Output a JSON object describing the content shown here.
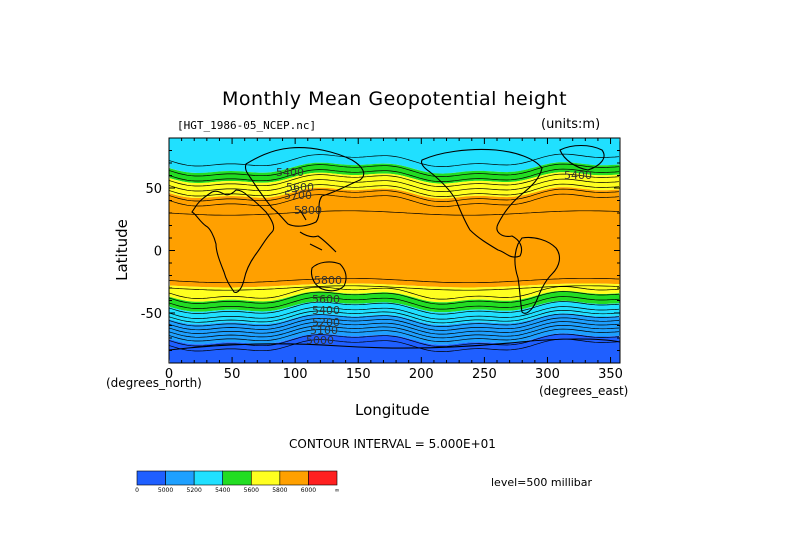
{
  "title": "Monthly Mean Geopotential height",
  "file_label": "[HGT_1986-05_NCEP.nc]",
  "units_label": "(units:m)",
  "contour_interval": "CONTOUR INTERVAL = 5.000E+01",
  "level_label": "level=500 millibar",
  "colors": {
    "band_lt_5000": "#1f5fff",
    "band_5000_5200": "#1ea0ff",
    "band_5200_5400": "#20e0ff",
    "band_5400_5600": "#22dd22",
    "band_5600_5800": "#ffff20",
    "band_5800_6000": "#ffa000",
    "band_gt_6000": "#ff2020"
  },
  "chart_data": {
    "type": "heatmap",
    "title": "Monthly Mean Geopotential height",
    "subtitle": "[HGT_1986-05_NCEP.nc]",
    "units": "(units:m)",
    "xlabel": "Longitude",
    "ylabel": "Latitude",
    "x_units": "(degrees_east)",
    "y_units": "(degrees_north)",
    "xlim": [
      0,
      357.5
    ],
    "ylim": [
      -90,
      90
    ],
    "x_ticks": [
      0,
      50,
      100,
      150,
      200,
      250,
      300,
      350
    ],
    "y_ticks": [
      50,
      0,
      -50
    ],
    "level": "level=500 millibar",
    "contour_interval": 50,
    "contour_labels": [
      "5400",
      "5600",
      "5700",
      "5800",
      "5800",
      "5600",
      "5400",
      "5200",
      "5100",
      "5000",
      "5400"
    ],
    "colorbar": {
      "levels": [
        "0",
        "5000",
        "5200",
        "5400",
        "5600",
        "5800",
        "6000",
        "∞"
      ],
      "colors": [
        "#1f5fff",
        "#1ea0ff",
        "#20e0ff",
        "#22dd22",
        "#ffff20",
        "#ffa000",
        "#ff2020"
      ]
    },
    "bands": [
      {
        "color": "#20e0ff",
        "lat_top": 90,
        "lat_bottom": 66
      },
      {
        "color": "#22dd22",
        "lat_top": 66,
        "lat_bottom": 58
      },
      {
        "color": "#ffff20",
        "lat_top": 58,
        "lat_bottom": 46
      },
      {
        "color": "#ffa000",
        "lat_top": 46,
        "lat_bottom": -28
      },
      {
        "color": "#ffff20",
        "lat_top": -28,
        "lat_bottom": -37
      },
      {
        "color": "#22dd22",
        "lat_top": -37,
        "lat_bottom": -45
      },
      {
        "color": "#20e0ff",
        "lat_top": -45,
        "lat_bottom": -55
      },
      {
        "color": "#1ea0ff",
        "lat_top": -55,
        "lat_bottom": -71
      },
      {
        "color": "#1f5fff",
        "lat_top": -71,
        "lat_bottom": -90
      }
    ]
  }
}
